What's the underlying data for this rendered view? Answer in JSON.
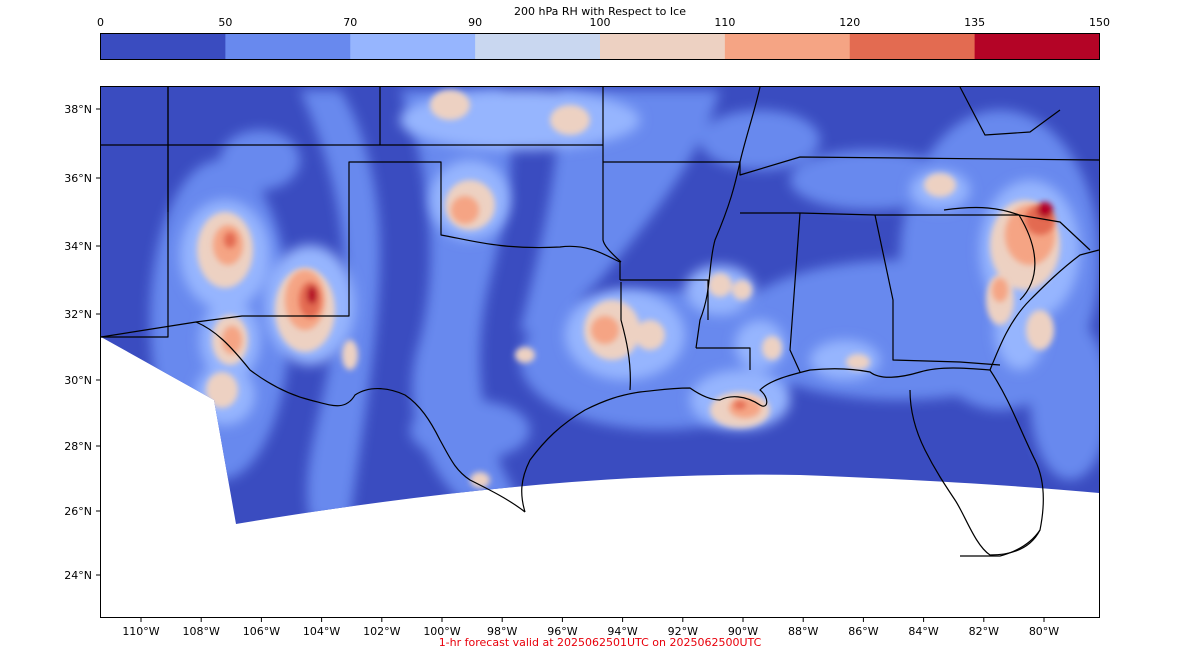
{
  "colorbar": {
    "title": "200 hPa RH with Respect to Ice",
    "levels": [
      "0",
      "50",
      "70",
      "90",
      "100",
      "110",
      "120",
      "135",
      "150"
    ],
    "colors": [
      "#3a4cc0",
      "#6889ee",
      "#96b5fe",
      "#c9d7f0",
      "#edd1c2",
      "#f5a484",
      "#e36b51",
      "#b40426"
    ]
  },
  "map": {
    "lat_labels": [
      "38°N",
      "36°N",
      "34°N",
      "32°N",
      "30°N",
      "28°N",
      "26°N",
      "24°N"
    ],
    "lon_labels": [
      "110°W",
      "108°W",
      "106°W",
      "104°W",
      "102°W",
      "100°W",
      "98°W",
      "96°W",
      "94°W",
      "92°W",
      "90°W",
      "88°W",
      "86°W",
      "84°W",
      "82°W",
      "80°W"
    ]
  },
  "footer": {
    "text": "1-hr forecast valid at 2025062501UTC on 2025062500UTC",
    "color": "#e8000b"
  }
}
